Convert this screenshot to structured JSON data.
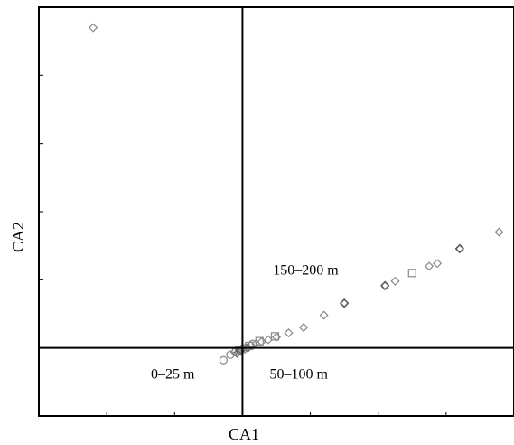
{
  "chart_data": {
    "type": "scatter",
    "title": "",
    "xlabel": "CA1",
    "ylabel": "CA2",
    "xlim": [
      -3,
      4
    ],
    "ylim": [
      -1,
      5
    ],
    "grid": false,
    "axes_lines": {
      "x_origin": 0,
      "y_origin": 0
    },
    "annotations": [
      {
        "text": "150–200 m",
        "x": 0.45,
        "y": 1.08
      },
      {
        "text": "0–25 m",
        "x": -1.35,
        "y": -0.45
      },
      {
        "text": "50–100 m",
        "x": 0.4,
        "y": -0.45
      }
    ],
    "series": [
      {
        "marker": "diamond",
        "color": "#888888",
        "points": [
          [
            -2.2,
            4.7
          ],
          [
            -0.12,
            -0.06
          ],
          [
            -0.05,
            -0.04
          ],
          [
            -0.02,
            -0.02
          ],
          [
            0.0,
            0.0
          ],
          [
            0.05,
            0.01
          ],
          [
            0.12,
            0.04
          ],
          [
            0.2,
            0.06
          ],
          [
            0.28,
            0.09
          ],
          [
            0.38,
            0.12
          ],
          [
            0.5,
            0.16
          ],
          [
            0.68,
            0.22
          ],
          [
            0.9,
            0.3
          ],
          [
            1.2,
            0.48
          ],
          [
            1.5,
            0.65
          ],
          [
            2.1,
            0.92
          ],
          [
            2.25,
            0.98
          ],
          [
            2.75,
            1.2
          ],
          [
            2.87,
            1.24
          ],
          [
            3.2,
            1.45
          ],
          [
            3.78,
            1.7
          ]
        ]
      },
      {
        "marker": "diamond",
        "color": "#555555",
        "points": [
          [
            -0.08,
            -0.08
          ],
          [
            -0.03,
            -0.05
          ],
          [
            0.08,
            0.0
          ],
          [
            1.5,
            0.66
          ],
          [
            2.1,
            0.91
          ],
          [
            3.2,
            1.46
          ]
        ]
      },
      {
        "marker": "square",
        "color": "#888888",
        "points": [
          [
            -0.05,
            -0.03
          ],
          [
            0.1,
            0.03
          ],
          [
            0.25,
            0.1
          ],
          [
            0.48,
            0.17
          ],
          [
            2.5,
            1.1
          ]
        ]
      },
      {
        "marker": "circle",
        "color": "#888888",
        "points": [
          [
            -0.28,
            -0.18
          ],
          [
            -0.18,
            -0.1
          ],
          [
            -0.1,
            -0.05
          ],
          [
            0.02,
            -0.02
          ],
          [
            0.15,
            0.06
          ]
        ]
      }
    ]
  }
}
